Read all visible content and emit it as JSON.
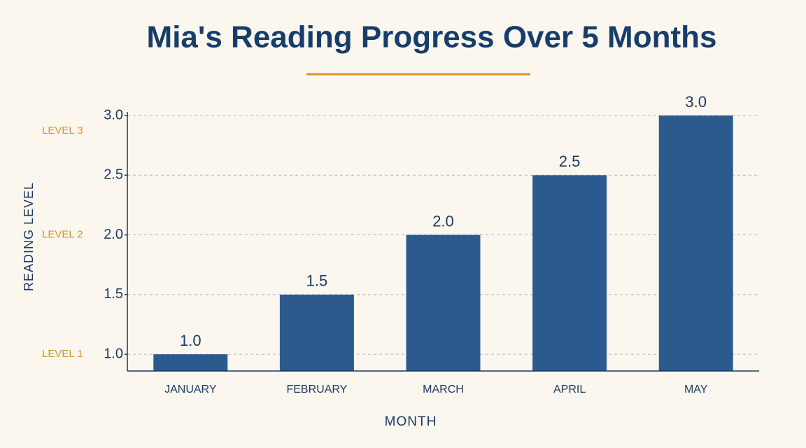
{
  "chart_data": {
    "type": "bar",
    "title": "Mia's Reading Progress Over 5 Months",
    "x_label": "MONTH",
    "y_label": "READING LEVEL",
    "categories": [
      "JANUARY",
      "FEBRUARY",
      "MARCH",
      "APRIL",
      "MAY"
    ],
    "values": [
      1.0,
      1.5,
      2.0,
      2.5,
      3.0
    ],
    "value_labels": [
      "1.0",
      "1.5",
      "2.0",
      "2.5",
      "3.0"
    ],
    "color": "#2c5a8f",
    "ylim": [
      0.86,
      3.0
    ],
    "yticks": [
      {
        "value": 1,
        "label": "1.0"
      },
      {
        "value": 1.5,
        "label": "1.5"
      },
      {
        "value": 2,
        "label": "2.0"
      },
      {
        "value": 2.5,
        "label": "2.5"
      },
      {
        "value": 3,
        "label": "3.0"
      }
    ],
    "level_markers": [
      {
        "value": 1,
        "label": "LEVEL 1"
      },
      {
        "value": 2,
        "label": "LEVEL 2"
      },
      {
        "value": 2.87,
        "label": "LEVEL 3"
      }
    ],
    "grid": true
  }
}
